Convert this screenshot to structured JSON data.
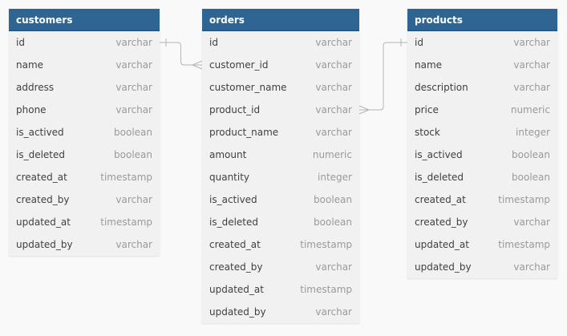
{
  "tables": [
    {
      "key": "customers",
      "name": "customers",
      "columns": [
        {
          "name": "id",
          "type": "varchar"
        },
        {
          "name": "name",
          "type": "varchar"
        },
        {
          "name": "address",
          "type": "varchar"
        },
        {
          "name": "phone",
          "type": "varchar"
        },
        {
          "name": "is_actived",
          "type": "boolean"
        },
        {
          "name": "is_deleted",
          "type": "boolean"
        },
        {
          "name": "created_at",
          "type": "timestamp"
        },
        {
          "name": "created_by",
          "type": "varchar"
        },
        {
          "name": "updated_at",
          "type": "timestamp"
        },
        {
          "name": "updated_by",
          "type": "varchar"
        }
      ]
    },
    {
      "key": "orders",
      "name": "orders",
      "columns": [
        {
          "name": "id",
          "type": "varchar"
        },
        {
          "name": "customer_id",
          "type": "varchar"
        },
        {
          "name": "customer_name",
          "type": "varchar"
        },
        {
          "name": "product_id",
          "type": "varchar"
        },
        {
          "name": "product_name",
          "type": "varchar"
        },
        {
          "name": "amount",
          "type": "numeric"
        },
        {
          "name": "quantity",
          "type": "integer"
        },
        {
          "name": "is_actived",
          "type": "boolean"
        },
        {
          "name": "is_deleted",
          "type": "boolean"
        },
        {
          "name": "created_at",
          "type": "timestamp"
        },
        {
          "name": "created_by",
          "type": "varchar"
        },
        {
          "name": "updated_at",
          "type": "timestamp"
        },
        {
          "name": "updated_by",
          "type": "varchar"
        }
      ]
    },
    {
      "key": "products",
      "name": "products",
      "columns": [
        {
          "name": "id",
          "type": "varchar"
        },
        {
          "name": "name",
          "type": "varchar"
        },
        {
          "name": "description",
          "type": "varchar"
        },
        {
          "name": "price",
          "type": "numeric"
        },
        {
          "name": "stock",
          "type": "integer"
        },
        {
          "name": "is_actived",
          "type": "boolean"
        },
        {
          "name": "is_deleted",
          "type": "boolean"
        },
        {
          "name": "created_at",
          "type": "timestamp"
        },
        {
          "name": "created_by",
          "type": "varchar"
        },
        {
          "name": "updated_at",
          "type": "timestamp"
        },
        {
          "name": "updated_by",
          "type": "varchar"
        }
      ]
    }
  ],
  "relationships": [
    {
      "from_table": "customers",
      "from_column": "id",
      "from_cardinality": "one",
      "to_table": "orders",
      "to_column": "customer_id",
      "to_cardinality": "many"
    },
    {
      "from_table": "products",
      "from_column": "id",
      "from_cardinality": "one",
      "to_table": "orders",
      "to_column": "product_id",
      "to_cardinality": "many"
    }
  ],
  "colors": {
    "header": "#2f6592",
    "header_text": "#ffffff",
    "body": "#f1f1f1",
    "column_name": "#404040",
    "column_type": "#9a9a9a",
    "connector": "#b5b5b5",
    "canvas": "#f9f9fa"
  }
}
